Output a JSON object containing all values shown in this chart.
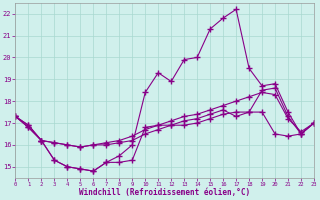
{
  "xlabel": "Windchill (Refroidissement éolien,°C)",
  "background_color": "#d0f0ec",
  "grid_color": "#a8d8d0",
  "line_color": "#880088",
  "x_hours": [
    0,
    1,
    2,
    3,
    4,
    5,
    6,
    7,
    8,
    9,
    10,
    11,
    12,
    13,
    14,
    15,
    16,
    17,
    18,
    19,
    20,
    21,
    22,
    23
  ],
  "ylim": [
    14.5,
    22.5
  ],
  "yticks": [
    15,
    16,
    17,
    18,
    19,
    20,
    21,
    22
  ],
  "xlim": [
    0,
    23
  ],
  "line1_y": [
    17.3,
    16.9,
    16.2,
    15.3,
    15.0,
    14.9,
    14.8,
    15.2,
    15.2,
    15.3,
    16.8,
    16.9,
    16.9,
    16.9,
    17.0,
    17.2,
    17.4,
    17.5,
    17.5,
    17.5,
    16.5,
    16.4,
    16.5,
    17.0
  ],
  "line2_y": [
    17.3,
    16.9,
    16.2,
    15.3,
    15.0,
    14.9,
    14.8,
    15.2,
    15.5,
    16.0,
    18.4,
    19.3,
    18.9,
    19.9,
    20.0,
    21.3,
    21.8,
    22.2,
    19.5,
    18.7,
    18.8,
    17.5,
    16.5,
    17.0
  ],
  "line3_y": [
    17.3,
    16.8,
    16.2,
    16.1,
    16.0,
    15.9,
    16.0,
    16.0,
    16.1,
    16.2,
    16.5,
    16.7,
    16.9,
    17.1,
    17.2,
    17.4,
    17.6,
    17.3,
    17.5,
    18.5,
    18.6,
    17.3,
    16.5,
    17.0
  ],
  "line4_y": [
    17.3,
    16.8,
    16.2,
    16.1,
    16.0,
    15.9,
    16.0,
    16.1,
    16.2,
    16.4,
    16.7,
    16.9,
    17.1,
    17.3,
    17.4,
    17.6,
    17.8,
    18.0,
    18.2,
    18.4,
    18.3,
    17.2,
    16.6,
    17.0
  ]
}
